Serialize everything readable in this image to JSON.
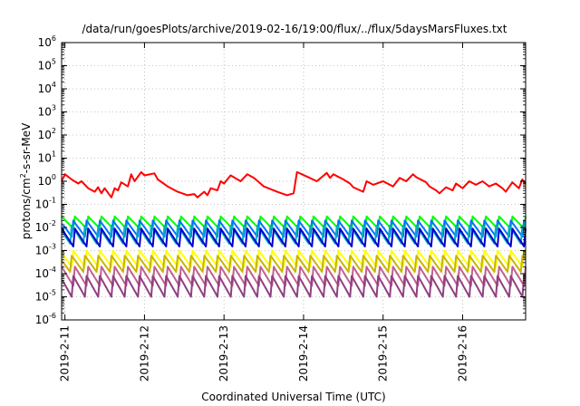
{
  "chart_data": {
    "type": "line",
    "title": "/data/run/goesPlots/archive/2019-02-16/19:00/flux/../flux/5daysMarsFluxes.txt",
    "xlabel": "Coordinated Universal Time (UTC)",
    "ylabel": {
      "prefix": "protons/cm",
      "sup": "2",
      "suffix": "-s-sr-MeV"
    },
    "yscale": "log",
    "ylim": [
      1e-06,
      1000000.0
    ],
    "xlim": [
      "2019-02-10 23:00",
      "2019-02-16 19:00"
    ],
    "grid": true,
    "grid_style": "dotted",
    "x_ticks": [
      {
        "value": "2019-02-11 00:00",
        "label": "2019-2-11"
      },
      {
        "value": "2019-02-12 00:00",
        "label": "2019-2-12"
      },
      {
        "value": "2019-02-13 00:00",
        "label": "2019-2-13"
      },
      {
        "value": "2019-02-14 00:00",
        "label": "2019-2-14"
      },
      {
        "value": "2019-02-15 00:00",
        "label": "2019-2-15"
      },
      {
        "value": "2019-02-16 00:00",
        "label": "2019-2-16"
      }
    ],
    "y_ticks": [
      {
        "value": 1e-06,
        "base": "10",
        "exp": "-6"
      },
      {
        "value": 1e-05,
        "base": "10",
        "exp": "-5"
      },
      {
        "value": 0.0001,
        "base": "10",
        "exp": "-4"
      },
      {
        "value": 0.001,
        "base": "10",
        "exp": "-3"
      },
      {
        "value": 0.01,
        "base": "10",
        "exp": "-2"
      },
      {
        "value": 0.1,
        "base": "10",
        "exp": "-1"
      },
      {
        "value": 1,
        "base": "10",
        "exp": "0"
      },
      {
        "value": 10,
        "base": "10",
        "exp": "1"
      },
      {
        "value": 100,
        "base": "10",
        "exp": "2"
      },
      {
        "value": 1000,
        "base": "10",
        "exp": "3"
      },
      {
        "value": 10000,
        "base": "10",
        "exp": "4"
      },
      {
        "value": 100000,
        "base": "10",
        "exp": "5"
      },
      {
        "value": 1000000,
        "base": "10",
        "exp": "6"
      }
    ],
    "series": [
      {
        "color": "#ff0000",
        "x": [
          "2019-02-10 23:00",
          "2019-02-11 00:00",
          "2019-02-11 02:00",
          "2019-02-11 04:00",
          "2019-02-11 05:00",
          "2019-02-11 07:00",
          "2019-02-11 09:00",
          "2019-02-11 10:00",
          "2019-02-11 11:00",
          "2019-02-11 12:00",
          "2019-02-11 14:00",
          "2019-02-11 15:00",
          "2019-02-11 16:00",
          "2019-02-11 17:00",
          "2019-02-11 19:00",
          "2019-02-11 20:00",
          "2019-02-11 21:00",
          "2019-02-11 23:00",
          "2019-02-12 00:00",
          "2019-02-12 03:00",
          "2019-02-12 04:00",
          "2019-02-12 07:00",
          "2019-02-12 10:00",
          "2019-02-12 13:00",
          "2019-02-12 15:00",
          "2019-02-12 16:00",
          "2019-02-12 18:00",
          "2019-02-12 19:00",
          "2019-02-12 20:00",
          "2019-02-12 22:00",
          "2019-02-12 23:00",
          "2019-02-13 00:00",
          "2019-02-13 02:00",
          "2019-02-13 05:00",
          "2019-02-13 07:00",
          "2019-02-13 09:00",
          "2019-02-13 11:00",
          "2019-02-13 12:00",
          "2019-02-13 16:00",
          "2019-02-13 19:00",
          "2019-02-13 21:00",
          "2019-02-13 22:00",
          "2019-02-14 01:00",
          "2019-02-14 04:00",
          "2019-02-14 07:00",
          "2019-02-14 08:00",
          "2019-02-14 09:00",
          "2019-02-14 12:00",
          "2019-02-14 14:00",
          "2019-02-14 15:00",
          "2019-02-14 18:00",
          "2019-02-14 19:00",
          "2019-02-14 21:00",
          "2019-02-15 00:00",
          "2019-02-15 03:00",
          "2019-02-15 05:00",
          "2019-02-15 07:00",
          "2019-02-15 09:00",
          "2019-02-15 10:00",
          "2019-02-15 13:00",
          "2019-02-15 14:00",
          "2019-02-15 16:00",
          "2019-02-15 17:00",
          "2019-02-15 19:00",
          "2019-02-15 21:00",
          "2019-02-15 22:00",
          "2019-02-16 00:00",
          "2019-02-16 02:00",
          "2019-02-16 04:00",
          "2019-02-16 06:00",
          "2019-02-16 08:00",
          "2019-02-16 10:00",
          "2019-02-16 12:00",
          "2019-02-16 13:00",
          "2019-02-16 15:00",
          "2019-02-16 17:00",
          "2019-02-16 18:00",
          "2019-02-16 19:00"
        ],
        "y": [
          1.0,
          2.0,
          1.2,
          0.8,
          1.0,
          0.5,
          0.35,
          0.55,
          0.3,
          0.5,
          0.2,
          0.5,
          0.4,
          0.9,
          0.6,
          2.0,
          1.0,
          2.5,
          1.8,
          2.2,
          1.2,
          0.6,
          0.35,
          0.25,
          0.28,
          0.2,
          0.35,
          0.25,
          0.5,
          0.4,
          1.0,
          0.8,
          1.8,
          1.0,
          2.0,
          1.4,
          0.8,
          0.6,
          0.35,
          0.25,
          0.3,
          2.5,
          1.6,
          1.0,
          2.3,
          1.4,
          2.0,
          1.2,
          0.8,
          0.55,
          0.35,
          1.0,
          0.7,
          1.0,
          0.6,
          1.4,
          1.0,
          2.0,
          1.5,
          0.9,
          0.6,
          0.4,
          0.3,
          0.55,
          0.4,
          0.8,
          0.5,
          1.0,
          0.7,
          1.0,
          0.6,
          0.8,
          0.5,
          0.35,
          0.9,
          0.5,
          1.2,
          0.8
        ]
      }
    ],
    "decay_series": [
      {
        "color": "#00ff00",
        "low": 0.009,
        "high": 0.03
      },
      {
        "color": "#0072ff",
        "low": 0.004,
        "high": 0.02
      },
      {
        "color": "#00b0c0",
        "low": 0.002,
        "high": 0.012
      },
      {
        "color": "#0000cc",
        "low": 0.0015,
        "high": 0.009
      },
      {
        "color": "#ffff00",
        "low": 0.0002,
        "high": 0.001
      },
      {
        "color": "#c8b400",
        "low": 0.00012,
        "high": 0.0006
      },
      {
        "color": "#c06090",
        "low": 3e-05,
        "high": 0.0002
      },
      {
        "color": "#904080",
        "low": 1e-05,
        "high": 8e-05
      }
    ],
    "decay_period_hours": 4
  }
}
